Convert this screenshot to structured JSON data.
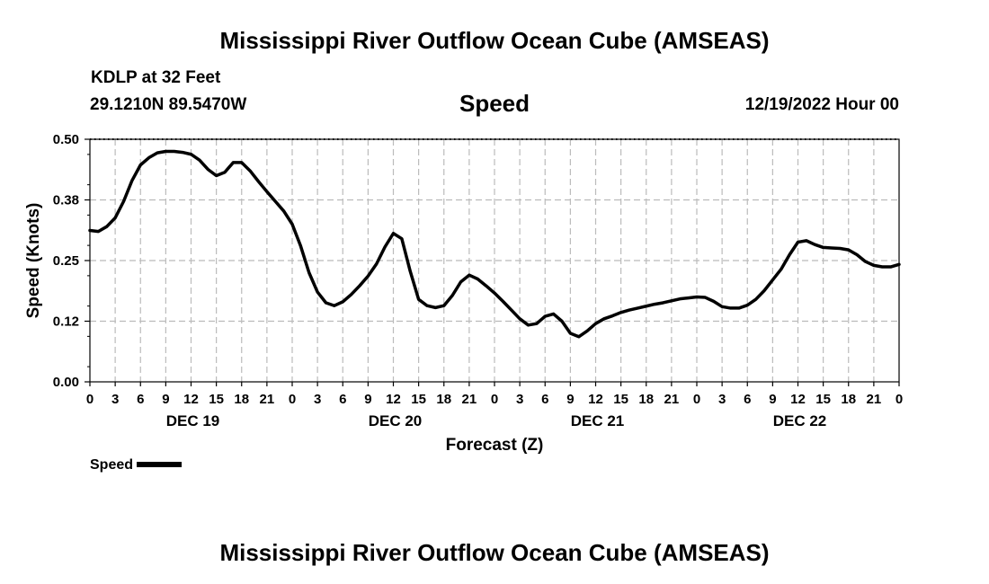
{
  "page": {
    "top_title": "Mississippi River Outflow Ocean Cube (AMSEAS)",
    "bottom_title": "Mississippi River Outflow Ocean Cube (AMSEAS)",
    "station": "KDLP at 32 Feet",
    "position": "29.1210N  89.5470W",
    "subtitle": "Speed",
    "run_time": "12/19/2022 Hour 00",
    "legend_label": "Speed"
  },
  "chart_data": {
    "type": "line",
    "title": "Speed",
    "xlabel": "Forecast (Z)",
    "ylabel": "Speed (Knots)",
    "ylim": [
      0,
      0.5
    ],
    "yticks": [
      "0.00",
      "0.12",
      "0.25",
      "0.38",
      "0.50"
    ],
    "xlim": [
      0,
      96
    ],
    "xtick_step_hours": 3,
    "xtick_labels": [
      "0",
      "3",
      "6",
      "9",
      "12",
      "15",
      "18",
      "21",
      "0",
      "3",
      "6",
      "9",
      "12",
      "15",
      "18",
      "21",
      "0",
      "3",
      "6",
      "9",
      "12",
      "15",
      "18",
      "21",
      "0",
      "3",
      "6",
      "9",
      "12",
      "15",
      "18",
      "21",
      "0"
    ],
    "day_labels": [
      {
        "label": "DEC 19",
        "hour": 12
      },
      {
        "label": "DEC 20",
        "hour": 36
      },
      {
        "label": "DEC 21",
        "hour": 60
      },
      {
        "label": "DEC 22",
        "hour": 84
      }
    ],
    "grid": true,
    "series": [
      {
        "name": "Speed",
        "color": "#000000",
        "x": [
          0,
          1,
          2,
          3,
          4,
          5,
          6,
          7,
          8,
          9,
          10,
          11,
          12,
          13,
          14,
          15,
          16,
          17,
          18,
          19,
          20,
          21,
          22,
          23,
          24,
          25,
          26,
          27,
          28,
          29,
          30,
          31,
          32,
          33,
          34,
          35,
          36,
          37,
          38,
          39,
          40,
          41,
          42,
          43,
          44,
          45,
          46,
          47,
          48,
          49,
          50,
          51,
          52,
          53,
          54,
          55,
          56,
          57,
          58,
          59,
          60,
          61,
          62,
          63,
          64,
          65,
          66,
          67,
          68,
          69,
          70,
          71,
          72,
          73,
          74,
          75,
          76,
          77,
          78,
          79,
          80,
          81,
          82,
          83,
          84,
          85,
          86,
          87,
          88,
          89,
          90,
          91,
          92,
          93,
          94,
          95,
          96
        ],
        "values": [
          0.312,
          0.31,
          0.32,
          0.338,
          0.372,
          0.415,
          0.447,
          0.462,
          0.472,
          0.475,
          0.475,
          0.473,
          0.469,
          0.457,
          0.438,
          0.425,
          0.432,
          0.452,
          0.452,
          0.435,
          0.413,
          0.392,
          0.372,
          0.352,
          0.325,
          0.28,
          0.225,
          0.185,
          0.163,
          0.157,
          0.165,
          0.18,
          0.198,
          0.218,
          0.243,
          0.278,
          0.306,
          0.295,
          0.228,
          0.17,
          0.157,
          0.153,
          0.157,
          0.178,
          0.206,
          0.22,
          0.212,
          0.198,
          0.183,
          0.166,
          0.148,
          0.13,
          0.117,
          0.12,
          0.135,
          0.14,
          0.125,
          0.1,
          0.093,
          0.105,
          0.12,
          0.13,
          0.136,
          0.143,
          0.148,
          0.152,
          0.156,
          0.16,
          0.163,
          0.167,
          0.171,
          0.173,
          0.175,
          0.174,
          0.166,
          0.155,
          0.152,
          0.152,
          0.158,
          0.17,
          0.188,
          0.21,
          0.232,
          0.262,
          0.288,
          0.291,
          0.283,
          0.277,
          0.276,
          0.275,
          0.272,
          0.262,
          0.248,
          0.24,
          0.237,
          0.237,
          0.242
        ]
      }
    ]
  }
}
